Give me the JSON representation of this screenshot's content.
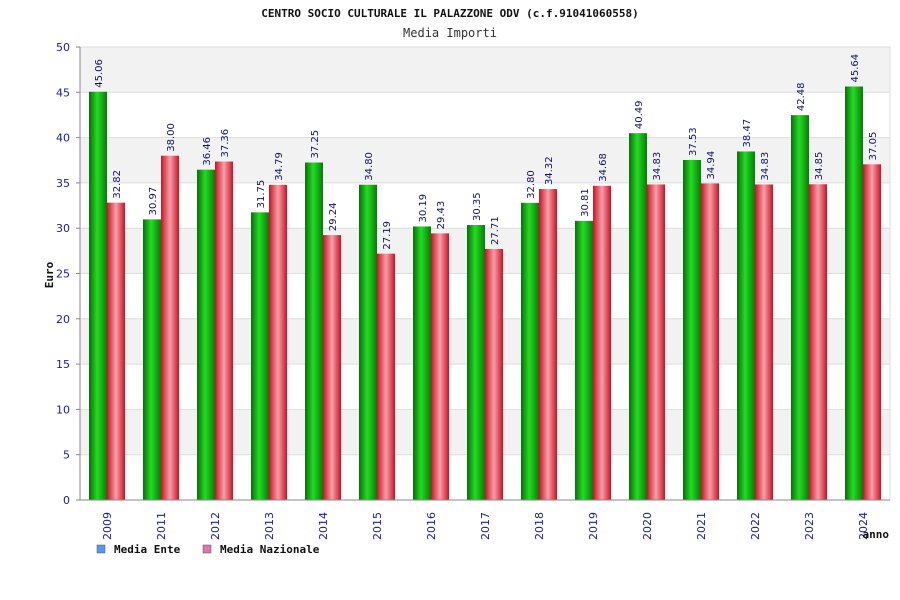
{
  "chart_data": {
    "type": "bar",
    "title": "CENTRO SOCIO CULTURALE IL PALAZZONE ODV (c.f.91041060558)",
    "subtitle": "Media Importi",
    "xlabel": "anno",
    "ylabel": "Euro",
    "ylim": [
      0,
      50
    ],
    "yticks": [
      "0",
      "5",
      "10",
      "15",
      "20",
      "25",
      "30",
      "35",
      "40",
      "45",
      "50"
    ],
    "grid": true,
    "legend_position": "bottom-left",
    "categories": [
      "2009",
      "2011",
      "2012",
      "2013",
      "2014",
      "2015",
      "2016",
      "2017",
      "2018",
      "2019",
      "2020",
      "2021",
      "2022",
      "2023",
      "2024"
    ],
    "series": [
      {
        "name": "Media Ente",
        "legend_color": "#5599ee",
        "bar_color": "#11bb11",
        "values": [
          45.06,
          30.97,
          36.46,
          31.75,
          37.25,
          34.8,
          30.19,
          30.35,
          32.8,
          30.81,
          40.49,
          37.53,
          38.47,
          42.48,
          45.64
        ],
        "labels": [
          "45.06",
          "30.97",
          "36.46",
          "31.75",
          "37.25",
          "34.80",
          "30.19",
          "30.35",
          "32.80",
          "30.81",
          "40.49",
          "37.53",
          "38.47",
          "42.48",
          "45.64"
        ]
      },
      {
        "name": "Media Nazionale",
        "legend_color": "#dd77aa",
        "bar_color": "#e83344",
        "values": [
          32.82,
          38.0,
          37.36,
          34.79,
          29.24,
          27.19,
          29.43,
          27.71,
          34.32,
          34.68,
          34.83,
          34.94,
          34.83,
          34.85,
          37.05
        ],
        "labels": [
          "32.82",
          "38.00",
          "37.36",
          "34.79",
          "29.24",
          "27.19",
          "29.43",
          "27.71",
          "34.32",
          "34.68",
          "34.83",
          "34.94",
          "34.83",
          "34.85",
          "37.05"
        ]
      }
    ]
  }
}
